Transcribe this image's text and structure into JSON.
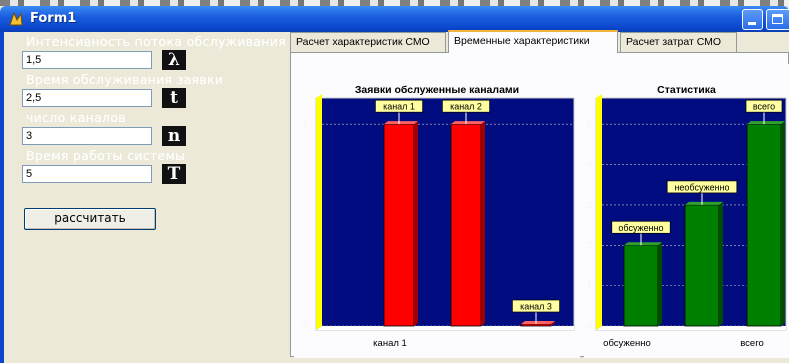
{
  "window": {
    "title": "Form1",
    "buttons": [
      "minimize",
      "maximize"
    ]
  },
  "inputs": {
    "intensity_label": "Интенсивность потока обслуживания",
    "intensity_value": "1,5",
    "intensity_symbol": "λ",
    "service_time_label": "Время обслуживания заявки",
    "service_time_value": "2,5",
    "service_time_symbol": "t",
    "channels_label": "число каналов",
    "channels_value": "3",
    "channels_symbol": "n",
    "work_time_label": "Время работы системы",
    "work_time_value": "5",
    "work_time_symbol": "T",
    "calculate_label": "рассчитать"
  },
  "tabs": [
    {
      "label": "Расчет характеристик СМО",
      "active": false
    },
    {
      "label": "Временные характеристики",
      "active": true
    },
    {
      "label": "Расчет затрат СМО",
      "active": false
    }
  ],
  "colors": {
    "chart_bg": "#000c80",
    "plot_bg": "#c8c8c8",
    "wall": "#ffff00",
    "bar_red": "#ff0000",
    "bar_green": "#008000",
    "label_bg": "#ffffa0"
  },
  "chart_data": [
    {
      "type": "bar",
      "title": "Заявки обслуженные каналами",
      "categories": [
        "канал 1",
        "канал 2",
        "канал 3"
      ],
      "x_tick_labels": [
        "канал 1"
      ],
      "values": [
        1,
        1,
        0
      ],
      "bar_labels": [
        "канал 1",
        "канал 2",
        "канал 3"
      ],
      "yticks": [
        0,
        1
      ],
      "ylim": [
        0,
        1.1
      ],
      "color": "#ff0000"
    },
    {
      "type": "bar",
      "title": "Статистика",
      "categories": [
        "обсуженно",
        "необсуженно",
        "всего"
      ],
      "x_tick_labels": [
        "обсуженно",
        "всего"
      ],
      "values": [
        2,
        3,
        5
      ],
      "bar_labels": [
        "обсуженно",
        "необсуженно",
        "всего"
      ],
      "yticks": [
        0,
        1,
        2,
        3,
        4,
        5
      ],
      "ylim": [
        0,
        5.5
      ],
      "color": "#008000"
    }
  ]
}
